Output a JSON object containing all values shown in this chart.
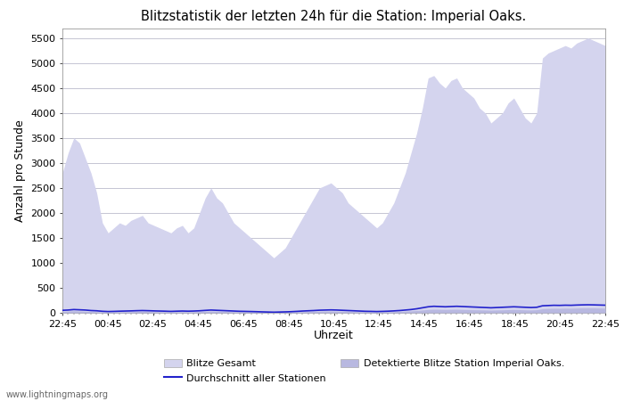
{
  "title": "Blitzstatistik der letzten 24h für die Station: Imperial Oaks.",
  "xlabel": "Uhrzeit",
  "ylabel": "Anzahl pro Stunde",
  "watermark": "www.lightningmaps.org",
  "yticks": [
    0,
    500,
    1000,
    1500,
    2000,
    2500,
    3000,
    3500,
    4000,
    4500,
    5000,
    5500
  ],
  "ylim": [
    0,
    5700
  ],
  "xtick_labels": [
    "22:45",
    "00:45",
    "02:45",
    "04:45",
    "06:45",
    "08:45",
    "10:45",
    "12:45",
    "14:45",
    "16:45",
    "18:45",
    "20:45",
    "22:45"
  ],
  "bg_color": "#ffffff",
  "plot_bg_color": "#ffffff",
  "grid_color": "#bbbbcc",
  "fill_color_gesamt": "#d4d4ee",
  "fill_color_station": "#b8b8e0",
  "line_color_avg": "#2222cc",
  "legend_labels": [
    "Blitze Gesamt",
    "Durchschnitt aller Stationen",
    "Detektierte Blitze Station Imperial Oaks."
  ],
  "gesamt_y": [
    2800,
    3200,
    3500,
    3400,
    3100,
    2800,
    2400,
    1800,
    1600,
    1700,
    1800,
    1750,
    1850,
    1900,
    1950,
    1800,
    1750,
    1700,
    1650,
    1600,
    1700,
    1750,
    1600,
    1700,
    2000,
    2300,
    2500,
    2300,
    2200,
    2000,
    1800,
    1700,
    1600,
    1500,
    1400,
    1300,
    1200,
    1100,
    1200,
    1300,
    1500,
    1700,
    1900,
    2100,
    2300,
    2500,
    2550,
    2600,
    2500,
    2400,
    2200,
    2100,
    2000,
    1900,
    1800,
    1700,
    1800,
    2000,
    2200,
    2500,
    2800,
    3200,
    3600,
    4100,
    4700,
    4750,
    4600,
    4500,
    4650,
    4700,
    4500,
    4400,
    4300,
    4100,
    4000,
    3800,
    3900,
    4000,
    4200,
    4300,
    4100,
    3900,
    3800,
    4000,
    5100,
    5200,
    5250,
    5300,
    5350,
    5300,
    5400,
    5450,
    5500,
    5450,
    5400,
    5350
  ],
  "station_y": [
    30,
    35,
    40,
    35,
    30,
    25,
    20,
    15,
    12,
    15,
    18,
    20,
    22,
    25,
    28,
    25,
    22,
    20,
    18,
    15,
    18,
    20,
    18,
    20,
    25,
    30,
    35,
    32,
    28,
    25,
    22,
    20,
    18,
    15,
    12,
    10,
    10,
    8,
    10,
    12,
    15,
    18,
    22,
    25,
    28,
    32,
    35,
    35,
    32,
    30,
    28,
    25,
    22,
    20,
    18,
    15,
    18,
    20,
    22,
    28,
    32,
    38,
    45,
    55,
    65,
    70,
    68,
    65,
    68,
    70,
    65,
    62,
    60,
    58,
    55,
    52,
    55,
    58,
    62,
    65,
    62,
    58,
    55,
    60,
    80,
    85,
    90,
    88,
    92,
    90,
    95,
    98,
    100,
    98,
    95,
    92
  ],
  "avg_y": [
    50,
    55,
    65,
    60,
    55,
    45,
    40,
    30,
    25,
    28,
    32,
    35,
    38,
    42,
    45,
    42,
    38,
    35,
    32,
    28,
    32,
    35,
    32,
    35,
    40,
    48,
    55,
    50,
    45,
    40,
    35,
    30,
    28,
    25,
    22,
    18,
    15,
    12,
    15,
    18,
    22,
    28,
    35,
    40,
    45,
    52,
    55,
    58,
    55,
    50,
    45,
    40,
    35,
    30,
    28,
    25,
    28,
    32,
    38,
    45,
    55,
    65,
    80,
    100,
    120,
    130,
    125,
    120,
    125,
    130,
    125,
    120,
    115,
    110,
    105,
    100,
    105,
    110,
    115,
    120,
    115,
    110,
    105,
    110,
    140,
    145,
    150,
    148,
    152,
    150,
    155,
    158,
    160,
    158,
    155,
    152
  ],
  "n_points": 96
}
